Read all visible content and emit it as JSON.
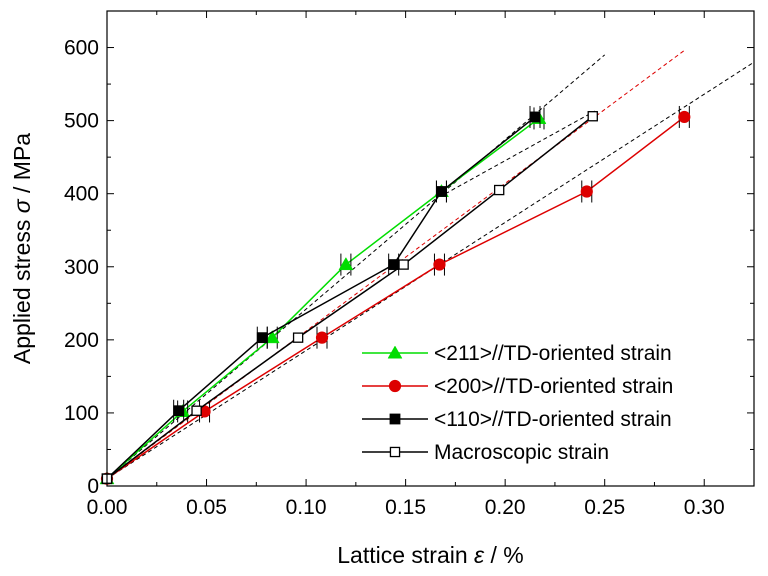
{
  "chart_data": {
    "type": "line",
    "xlabel": {
      "prefix": "Lattice strain ",
      "symbol": "ε",
      "suffix": " / %"
    },
    "ylabel": {
      "prefix": "Applied stress ",
      "symbol": "σ",
      "suffix": " / MPa"
    },
    "xlim": [
      0.0,
      0.325
    ],
    "ylim": [
      0,
      650
    ],
    "xticks": [
      0.0,
      0.05,
      0.1,
      0.15,
      0.2,
      0.25,
      0.3
    ],
    "xtick_labels": [
      "0.00",
      "0.05",
      "0.10",
      "0.15",
      "0.20",
      "0.25",
      "0.30"
    ],
    "yticks": [
      0,
      100,
      200,
      300,
      400,
      500,
      600
    ],
    "ytick_labels": [
      "0",
      "100",
      "200",
      "300",
      "400",
      "500",
      "600"
    ],
    "legend_position": "lower-right",
    "series": [
      {
        "name": "<211>//TD-oriented strain",
        "color": "#00dd00",
        "marker": "filled-triangle",
        "x": [
          0.0,
          0.038,
          0.083,
          0.12,
          0.168,
          0.217
        ],
        "y": [
          10,
          102,
          203,
          303,
          403,
          503
        ]
      },
      {
        "name": "<200>//TD-oriented strain",
        "color": "#dd0000",
        "marker": "filled-circle",
        "x": [
          0.0,
          0.049,
          0.108,
          0.167,
          0.241,
          0.29
        ],
        "y": [
          10,
          102,
          203,
          303,
          403,
          505
        ]
      },
      {
        "name": "<110>//TD-oriented strain",
        "color": "#000000",
        "marker": "filled-square",
        "x": [
          0.0,
          0.036,
          0.078,
          0.144,
          0.168,
          0.215
        ],
        "y": [
          10,
          103,
          203,
          303,
          403,
          505
        ]
      },
      {
        "name": "Macroscopic strain",
        "color": "#000000",
        "marker": "open-square",
        "x": [
          0.0,
          0.045,
          0.096,
          0.149,
          0.197,
          0.244
        ],
        "y": [
          10,
          103,
          203,
          303,
          405,
          506
        ]
      }
    ],
    "fit_lines": [
      {
        "color": "#000000",
        "x": [
          0.0,
          0.25
        ],
        "y": [
          10,
          590
        ]
      },
      {
        "color": "#dd0000",
        "x": [
          0.0,
          0.29
        ],
        "y": [
          10,
          596
        ]
      },
      {
        "color": "#000000",
        "x": [
          0.0,
          0.325
        ],
        "y": [
          10,
          580
        ]
      },
      {
        "color": "#000000",
        "x": [
          0.17,
          0.245
        ],
        "y": [
          400,
          513
        ]
      }
    ]
  }
}
